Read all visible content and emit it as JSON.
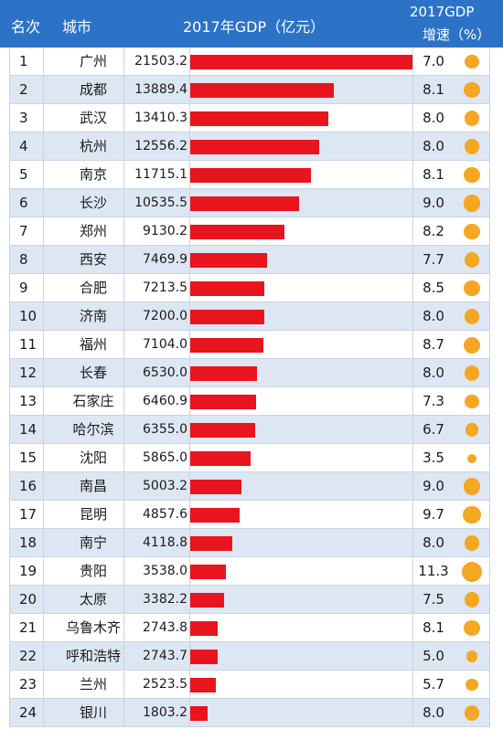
{
  "header": {
    "rank": "名次",
    "city": "城市",
    "gdp": "2017年GDP（亿元）",
    "growth_line1": "2017GDP",
    "growth_line2": "增速（%）"
  },
  "colors": {
    "header_bg": "#2c73c8",
    "bar": "#e8141e",
    "dot": "#f5a623",
    "row_alt": "#dde7f3"
  },
  "chart_data": {
    "type": "table",
    "columns": [
      "名次",
      "城市",
      "2017年GDP（亿元）",
      "2017GDP增速（%）"
    ],
    "rows": [
      {
        "rank": "1",
        "city": "广州",
        "gdp": "21503.2",
        "growth": "7.0"
      },
      {
        "rank": "2",
        "city": "成都",
        "gdp": "13889.4",
        "growth": "8.1"
      },
      {
        "rank": "3",
        "city": "武汉",
        "gdp": "13410.3",
        "growth": "8.0"
      },
      {
        "rank": "4",
        "city": "杭州",
        "gdp": "12556.2",
        "growth": "8.0"
      },
      {
        "rank": "5",
        "city": "南京",
        "gdp": "11715.1",
        "growth": "8.1"
      },
      {
        "rank": "6",
        "city": "长沙",
        "gdp": "10535.5",
        "growth": "9.0"
      },
      {
        "rank": "7",
        "city": "郑州",
        "gdp": "9130.2",
        "growth": "8.2"
      },
      {
        "rank": "8",
        "city": "西安",
        "gdp": "7469.9",
        "growth": "7.7"
      },
      {
        "rank": "9",
        "city": "合肥",
        "gdp": "7213.5",
        "growth": "8.5"
      },
      {
        "rank": "10",
        "city": "济南",
        "gdp": "7200.0",
        "growth": "8.0"
      },
      {
        "rank": "11",
        "city": "福州",
        "gdp": "7104.0",
        "growth": "8.7"
      },
      {
        "rank": "12",
        "city": "长春",
        "gdp": "6530.0",
        "growth": "8.0"
      },
      {
        "rank": "13",
        "city": "石家庄",
        "gdp": "6460.9",
        "growth": "7.3"
      },
      {
        "rank": "14",
        "city": "哈尔滨",
        "gdp": "6355.0",
        "growth": "6.7"
      },
      {
        "rank": "15",
        "city": "沈阳",
        "gdp": "5865.0",
        "growth": "3.5"
      },
      {
        "rank": "16",
        "city": "南昌",
        "gdp": "5003.2",
        "growth": "9.0"
      },
      {
        "rank": "17",
        "city": "昆明",
        "gdp": "4857.6",
        "growth": "9.7"
      },
      {
        "rank": "18",
        "city": "南宁",
        "gdp": "4118.8",
        "growth": "8.0"
      },
      {
        "rank": "19",
        "city": "贵阳",
        "gdp": "3538.0",
        "growth": "11.3"
      },
      {
        "rank": "20",
        "city": "太原",
        "gdp": "3382.2",
        "growth": "7.5"
      },
      {
        "rank": "21",
        "city": "乌鲁木齐",
        "gdp": "2743.8",
        "growth": "8.1"
      },
      {
        "rank": "22",
        "city": "呼和浩特",
        "gdp": "2743.7",
        "growth": "5.0"
      },
      {
        "rank": "23",
        "city": "兰州",
        "gdp": "2523.5",
        "growth": "5.7"
      },
      {
        "rank": "24",
        "city": "银川",
        "gdp": "1803.2",
        "growth": "8.0"
      }
    ]
  }
}
